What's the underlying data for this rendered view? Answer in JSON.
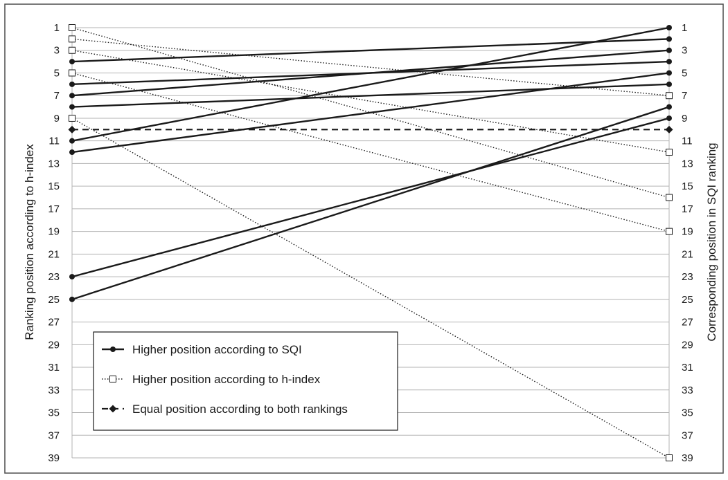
{
  "chart_data": {
    "type": "line",
    "title": "",
    "ylabel_left": "Ranking position according to h-index",
    "ylabel_right": "Corresponding position in SQI ranking",
    "ylim": [
      1,
      39
    ],
    "y_inverted": true,
    "grid": true,
    "tick_labels": [
      "1",
      "3",
      "5",
      "7",
      "9",
      "11",
      "13",
      "15",
      "17",
      "19",
      "21",
      "23",
      "25",
      "27",
      "29",
      "31",
      "33",
      "35",
      "37",
      "39"
    ],
    "x": [
      "h-index",
      "SQI"
    ],
    "legend_placement": "bottom-left",
    "legend": [
      {
        "key": "sqi",
        "label": "Higher position according to SQI"
      },
      {
        "key": "hindex",
        "label": "Higher position according to h-index"
      },
      {
        "key": "equal",
        "label": "Equal position according to both rankings"
      }
    ],
    "series": [
      {
        "group": "sqi",
        "values": [
          4,
          2
        ]
      },
      {
        "group": "sqi",
        "values": [
          6,
          4
        ]
      },
      {
        "group": "sqi",
        "values": [
          7,
          3
        ]
      },
      {
        "group": "sqi",
        "values": [
          8,
          6
        ]
      },
      {
        "group": "sqi",
        "values": [
          11,
          1
        ]
      },
      {
        "group": "sqi",
        "values": [
          12,
          5
        ]
      },
      {
        "group": "sqi",
        "values": [
          23,
          9
        ]
      },
      {
        "group": "sqi",
        "values": [
          25,
          8
        ]
      },
      {
        "group": "hindex",
        "values": [
          1,
          16
        ]
      },
      {
        "group": "hindex",
        "values": [
          2,
          7
        ]
      },
      {
        "group": "hindex",
        "values": [
          3,
          12
        ]
      },
      {
        "group": "hindex",
        "values": [
          5,
          19
        ]
      },
      {
        "group": "hindex",
        "values": [
          9,
          39
        ]
      },
      {
        "group": "equal",
        "values": [
          10,
          10
        ]
      }
    ],
    "colors": {
      "line": "#1a1a1a",
      "grid": "#b3b3b3",
      "border": "#4d4d4d"
    }
  }
}
